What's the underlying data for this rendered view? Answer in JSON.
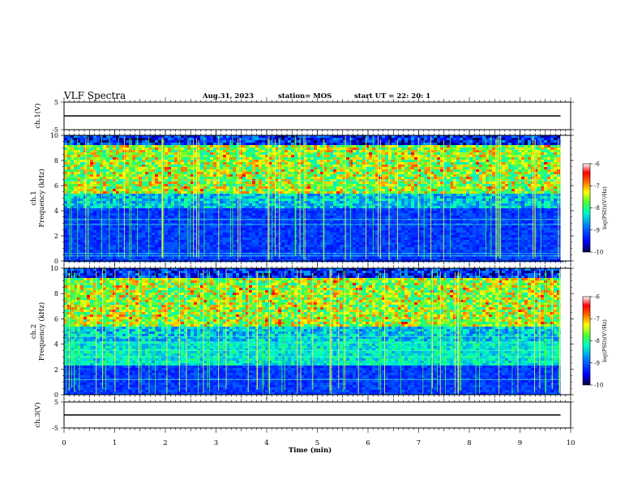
{
  "header": {
    "title": "VLF Spectra",
    "date": "Aug.31, 2023",
    "station": "station= MOS",
    "start": "start  UT =   22: 20: 1"
  },
  "chart_data": [
    {
      "id": "ch1-waveform",
      "type": "line",
      "ylabel": "ch.1(V)",
      "ylim": [
        -5,
        5
      ],
      "ytick_labels": [
        "5",
        "-5"
      ],
      "xlim": [
        0,
        10
      ],
      "series": [
        {
          "x": [
            0.0,
            9.8
          ],
          "y": [
            0,
            0
          ]
        }
      ]
    },
    {
      "id": "ch1-spectrogram",
      "type": "heatmap",
      "ylabel": "ch.1\nFrequency  (kHz)",
      "ylim": [
        0,
        10
      ],
      "ytick_labels": [
        "0",
        "2",
        "4",
        "6",
        "8",
        "10"
      ],
      "xlim": [
        0,
        10
      ],
      "data_end_min": 9.8,
      "colorbar": {
        "label": "log(PSD)(V²/Hz)",
        "range": [
          -10,
          -6
        ],
        "tick_labels": [
          "-6",
          "-7",
          "-8",
          "-9",
          "-10"
        ]
      }
    },
    {
      "id": "ch2-spectrogram",
      "type": "heatmap",
      "ylabel": "ch.2\nFrequency  (kHz)",
      "ylim": [
        0,
        10
      ],
      "ytick_labels": [
        "0",
        "2",
        "4",
        "6",
        "8",
        "10"
      ],
      "xlim": [
        0,
        10
      ],
      "data_end_min": 9.8,
      "colorbar": {
        "label": "log(PSD)(V²/Hz)",
        "range": [
          -10,
          -6
        ],
        "tick_labels": [
          "-6",
          "-7",
          "-8",
          "-9",
          "-10"
        ]
      }
    },
    {
      "id": "ch3-waveform",
      "type": "line",
      "ylabel": "ch.3(V)",
      "ylim": [
        -5,
        5
      ],
      "ytick_labels": [
        "5",
        "-5"
      ],
      "xlim": [
        0,
        10
      ],
      "series": [
        {
          "x": [
            0.0,
            9.8
          ],
          "y": [
            0,
            0
          ]
        }
      ]
    }
  ],
  "xaxis": {
    "label": "Time  (min)",
    "tick_labels": [
      "0",
      "1",
      "2",
      "3",
      "4",
      "5",
      "6",
      "7",
      "8",
      "9",
      "10"
    ]
  }
}
